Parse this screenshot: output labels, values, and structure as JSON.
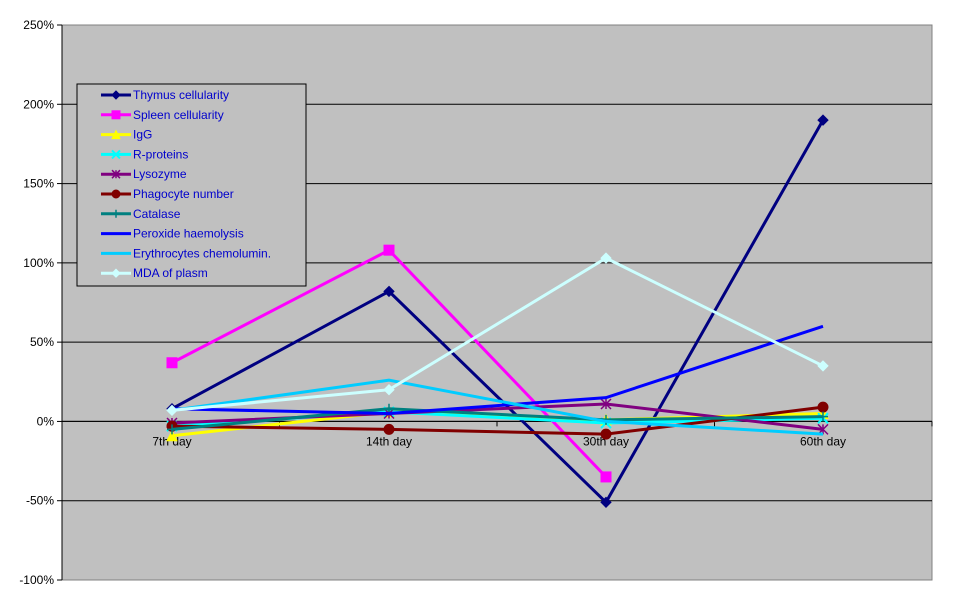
{
  "chart_data": {
    "type": "line",
    "title": "",
    "xlabel": "",
    "ylabel": "",
    "categories": [
      "7th day",
      "14th day",
      "30th day",
      "60th day"
    ],
    "y_tick_labels": [
      "250%",
      "200%",
      "150%",
      "100%",
      "50%",
      "0%",
      "-50%",
      "-100%"
    ],
    "ylim": [
      -100,
      250
    ],
    "ytick_step": 50,
    "grid": true,
    "legend_position": "top-left",
    "plot_background": "#c0c0c0",
    "series": [
      {
        "name": "Thymus cellularity",
        "color": "#000080",
        "marker": "diamond",
        "values": [
          8,
          82,
          -51,
          190
        ]
      },
      {
        "name": "Spleen cellularity",
        "color": "#ff00ff",
        "marker": "square",
        "values": [
          37,
          108,
          -35,
          null
        ]
      },
      {
        "name": "IgG",
        "color": "#ffff00",
        "marker": "triangle",
        "values": [
          -9,
          6,
          1,
          5
        ]
      },
      {
        "name": "R-proteins",
        "color": "#00ffff",
        "marker": "x",
        "values": [
          -3,
          6,
          -1,
          2
        ]
      },
      {
        "name": "Lysozyme",
        "color": "#800080",
        "marker": "star",
        "values": [
          -1,
          5,
          11,
          -5
        ]
      },
      {
        "name": "Phagocyte number",
        "color": "#800000",
        "marker": "circle",
        "values": [
          -3,
          -5,
          -8,
          9
        ]
      },
      {
        "name": "Catalase",
        "color": "#008080",
        "marker": "plus",
        "values": [
          -5,
          8,
          1,
          3
        ]
      },
      {
        "name": "Peroxide haemolysis",
        "color": "#0000ff",
        "marker": "none",
        "values": [
          8,
          5,
          15,
          60
        ]
      },
      {
        "name": "Erythrocytes chemolumin.",
        "color": "#00ccff",
        "marker": "none",
        "values": [
          7,
          26,
          0,
          -8
        ]
      },
      {
        "name": "MDA of plasm",
        "color": "#ccffff",
        "marker": "diamond",
        "values": [
          7,
          20,
          103,
          35
        ]
      }
    ]
  }
}
